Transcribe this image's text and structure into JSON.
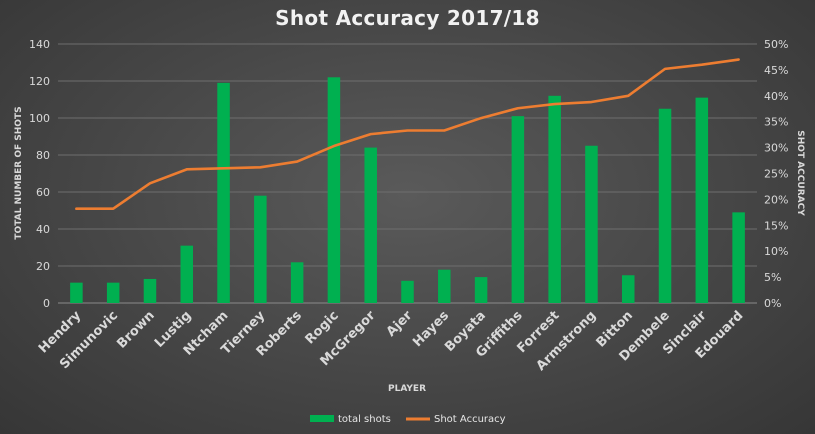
{
  "chart_data": {
    "type": "bar",
    "title": "Shot Accuracy 2017/18",
    "xlabel": "PLAYER",
    "ylabel": "TOTAL NUMBER OF SHOTS",
    "y2label": "SHOT ACCURACY",
    "ylim": [
      0,
      140
    ],
    "y2lim": [
      0,
      50
    ],
    "y_ticks": [
      "0",
      "20",
      "40",
      "60",
      "80",
      "100",
      "120",
      "140"
    ],
    "y2_ticks": [
      "0%",
      "5%",
      "10%",
      "15%",
      "20%",
      "25%",
      "30%",
      "35%",
      "40%",
      "45%",
      "50%"
    ],
    "grid": true,
    "legend_position": "bottom",
    "categories": [
      "Hendry",
      "Simunovic",
      "Brown",
      "Lustig",
      "Ntcham",
      "Tierney",
      "Roberts",
      "Rogic",
      "McGregor",
      "Ajer",
      "Hayes",
      "Boyata",
      "Griffiths",
      "Forrest",
      "Armstrong",
      "Bitton",
      "Dembele",
      "Sinclair",
      "Edouard"
    ],
    "series": [
      {
        "name": "total shots",
        "type": "bar",
        "axis": "left",
        "color": "#00b050",
        "values": [
          11,
          11,
          13,
          31,
          119,
          58,
          22,
          122,
          84,
          12,
          18,
          14,
          101,
          112,
          85,
          15,
          105,
          111,
          49
        ]
      },
      {
        "name": "Shot Accuracy",
        "type": "line",
        "axis": "right",
        "color": "#ed7d31",
        "values": [
          18.2,
          18.2,
          23.1,
          25.8,
          26.0,
          26.2,
          27.3,
          30.3,
          32.6,
          33.3,
          33.3,
          35.7,
          37.6,
          38.4,
          38.8,
          40.0,
          45.2,
          46.0,
          47.0
        ]
      }
    ]
  }
}
